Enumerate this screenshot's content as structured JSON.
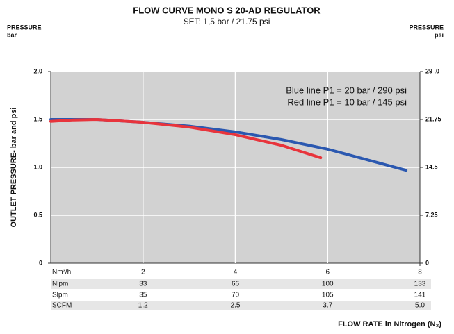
{
  "chart_data": {
    "type": "line",
    "title": "FLOW CURVE MONO S 20-AD REGULATOR",
    "subtitle": "SET: 1,5 bar / 21.75 psi",
    "left_axis_title": "PRESSURE",
    "left_axis_unit": "bar",
    "right_axis_title": "PRESSURE",
    "right_axis_unit": "psi",
    "y_label": "OUTLET PRESSURE- bar and psi",
    "x_label": "FLOW RATE in Nitrogen (N₂)",
    "x_unit": "Nm³/h",
    "xlim": [
      0,
      8
    ],
    "xticks": [
      2,
      4,
      6,
      8
    ],
    "ylim": [
      0,
      2
    ],
    "yticks": [
      0,
      0.5,
      {
        "value": 1,
        "label": "1.0"
      },
      1.5,
      {
        "value": 2,
        "label": "2.0"
      }
    ],
    "y2lim": [
      0,
      29
    ],
    "y2ticks": [
      0,
      7.25,
      14.5,
      21.75,
      {
        "value": 29,
        "label": "29 .0"
      }
    ],
    "grid": true,
    "legend": "top-right",
    "series": [
      {
        "name": "Blue line P1 = 20 bar / 290 psi",
        "color": "#2b58b0",
        "x": [
          0,
          1,
          2,
          3,
          4,
          5,
          6,
          7,
          7.7
        ],
        "values": [
          1.5,
          1.5,
          1.47,
          1.43,
          1.37,
          1.29,
          1.19,
          1.06,
          0.97
        ]
      },
      {
        "name": "Red line P1 = 10 bar / 145 psi",
        "color": "#e8343c",
        "x": [
          0,
          0.5,
          1,
          2,
          3,
          4,
          5,
          5.85
        ],
        "values": [
          1.48,
          1.495,
          1.5,
          1.47,
          1.42,
          1.34,
          1.23,
          1.1
        ]
      }
    ],
    "flow_table": [
      {
        "label": "Nlpm",
        "values": [
          "33",
          "66",
          "100",
          "133"
        ]
      },
      {
        "label": "Slpm",
        "values": [
          "35",
          "70",
          "105",
          "141"
        ]
      },
      {
        "label": "SCFM",
        "values": [
          "1.2",
          "2.5",
          "3.7",
          "5.0"
        ]
      }
    ]
  }
}
